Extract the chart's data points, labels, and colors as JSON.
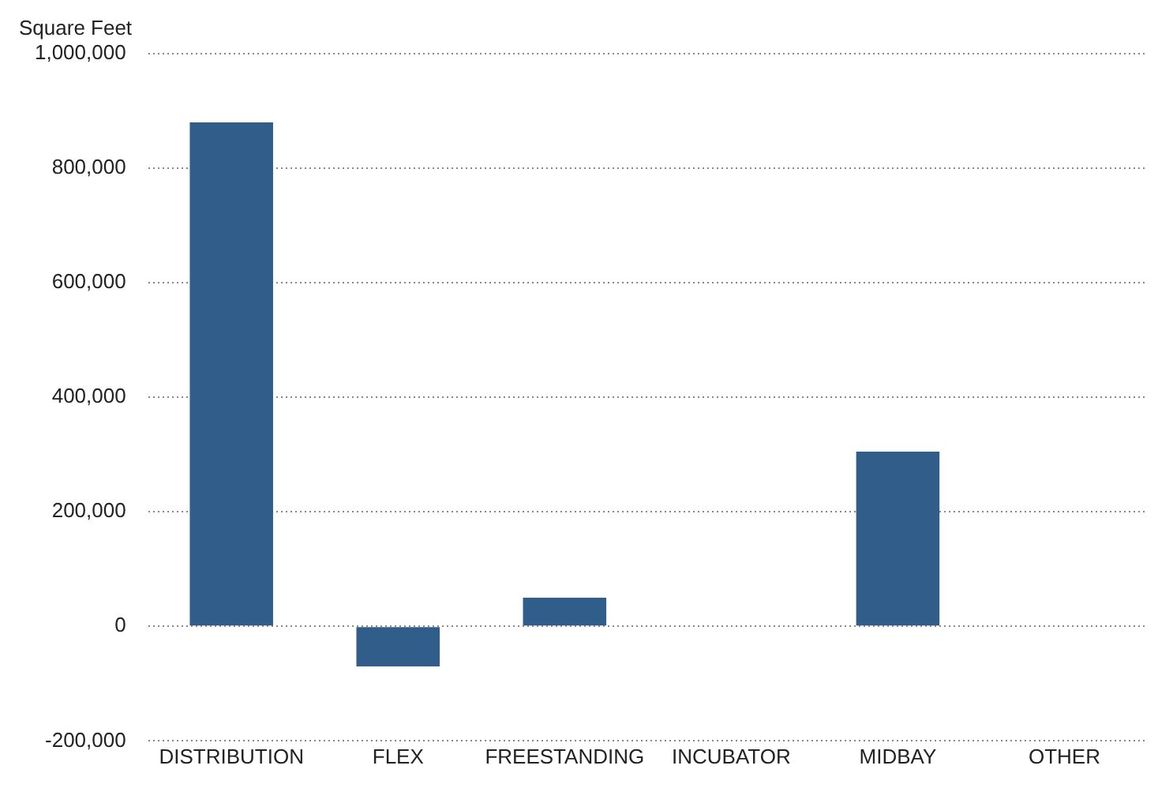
{
  "chart_data": {
    "type": "bar",
    "ylabel": "Square Feet",
    "categories": [
      "DISTRIBUTION",
      "FLEX",
      "FREESTANDING",
      "INCUBATOR",
      "MIDBAY",
      "OTHER"
    ],
    "values": [
      880000,
      -70000,
      50000,
      0,
      305000,
      0
    ],
    "color": "#315d8a",
    "ylim": [
      -200000,
      1000000
    ],
    "yticks": [
      {
        "value": -200000,
        "label": "-200,000"
      },
      0,
      {
        "value": 200000,
        "label": "200,000"
      },
      {
        "value": 400000,
        "label": "400,000"
      },
      {
        "value": 600000,
        "label": "600,000"
      },
      {
        "value": 800000,
        "label": "800,000"
      },
      {
        "value": 1000000,
        "label": "1,000,000"
      }
    ],
    "grid": "y",
    "legend": false
  }
}
